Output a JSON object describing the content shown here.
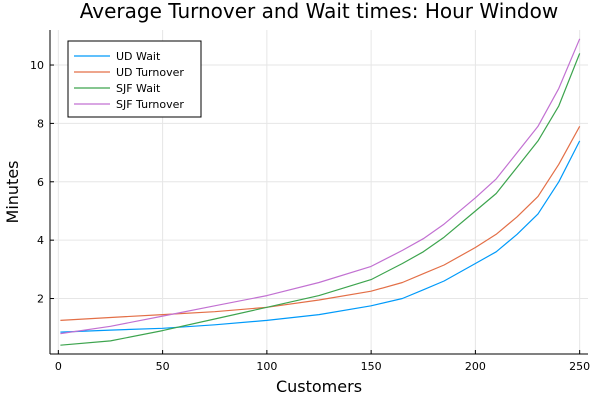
{
  "chart_data": {
    "type": "line",
    "title": "Average Turnover and Wait times: Hour Window",
    "xlabel": "Customers",
    "ylabel": "Minutes",
    "xlim": [
      -4,
      254
    ],
    "ylim": [
      0.1,
      11.2
    ],
    "xticks": [
      0,
      50,
      100,
      150,
      200,
      250
    ],
    "yticks": [
      2,
      4,
      6,
      8,
      10
    ],
    "grid": true,
    "legend_position": "top-left",
    "series": [
      {
        "name": "UD Wait",
        "color": "#009AFA",
        "x": [
          1,
          25,
          50,
          75,
          100,
          125,
          150,
          165,
          175,
          185,
          200,
          210,
          220,
          230,
          240,
          250
        ],
        "y": [
          0.85,
          0.92,
          0.98,
          1.1,
          1.25,
          1.45,
          1.75,
          2.0,
          2.3,
          2.6,
          3.2,
          3.6,
          4.2,
          4.9,
          6.0,
          7.4
        ]
      },
      {
        "name": "UD Turnover",
        "color": "#E36F47",
        "x": [
          1,
          25,
          50,
          75,
          100,
          125,
          150,
          165,
          175,
          185,
          200,
          210,
          220,
          230,
          240,
          250
        ],
        "y": [
          1.25,
          1.35,
          1.45,
          1.55,
          1.7,
          1.95,
          2.25,
          2.55,
          2.85,
          3.15,
          3.75,
          4.2,
          4.8,
          5.5,
          6.6,
          7.9
        ]
      },
      {
        "name": "SJF Wait",
        "color": "#3DA44E",
        "x": [
          1,
          25,
          50,
          75,
          100,
          125,
          150,
          165,
          175,
          185,
          200,
          210,
          220,
          230,
          240,
          250
        ],
        "y": [
          0.4,
          0.55,
          0.9,
          1.3,
          1.7,
          2.1,
          2.65,
          3.2,
          3.6,
          4.1,
          5.0,
          5.6,
          6.5,
          7.4,
          8.6,
          10.4
        ]
      },
      {
        "name": "SJF Turnover",
        "color": "#C271D2",
        "x": [
          1,
          25,
          50,
          75,
          100,
          125,
          150,
          165,
          175,
          185,
          200,
          210,
          220,
          230,
          240,
          250
        ],
        "y": [
          0.8,
          1.05,
          1.4,
          1.75,
          2.1,
          2.55,
          3.1,
          3.65,
          4.05,
          4.55,
          5.45,
          6.1,
          7.0,
          7.9,
          9.2,
          10.9
        ]
      }
    ]
  }
}
